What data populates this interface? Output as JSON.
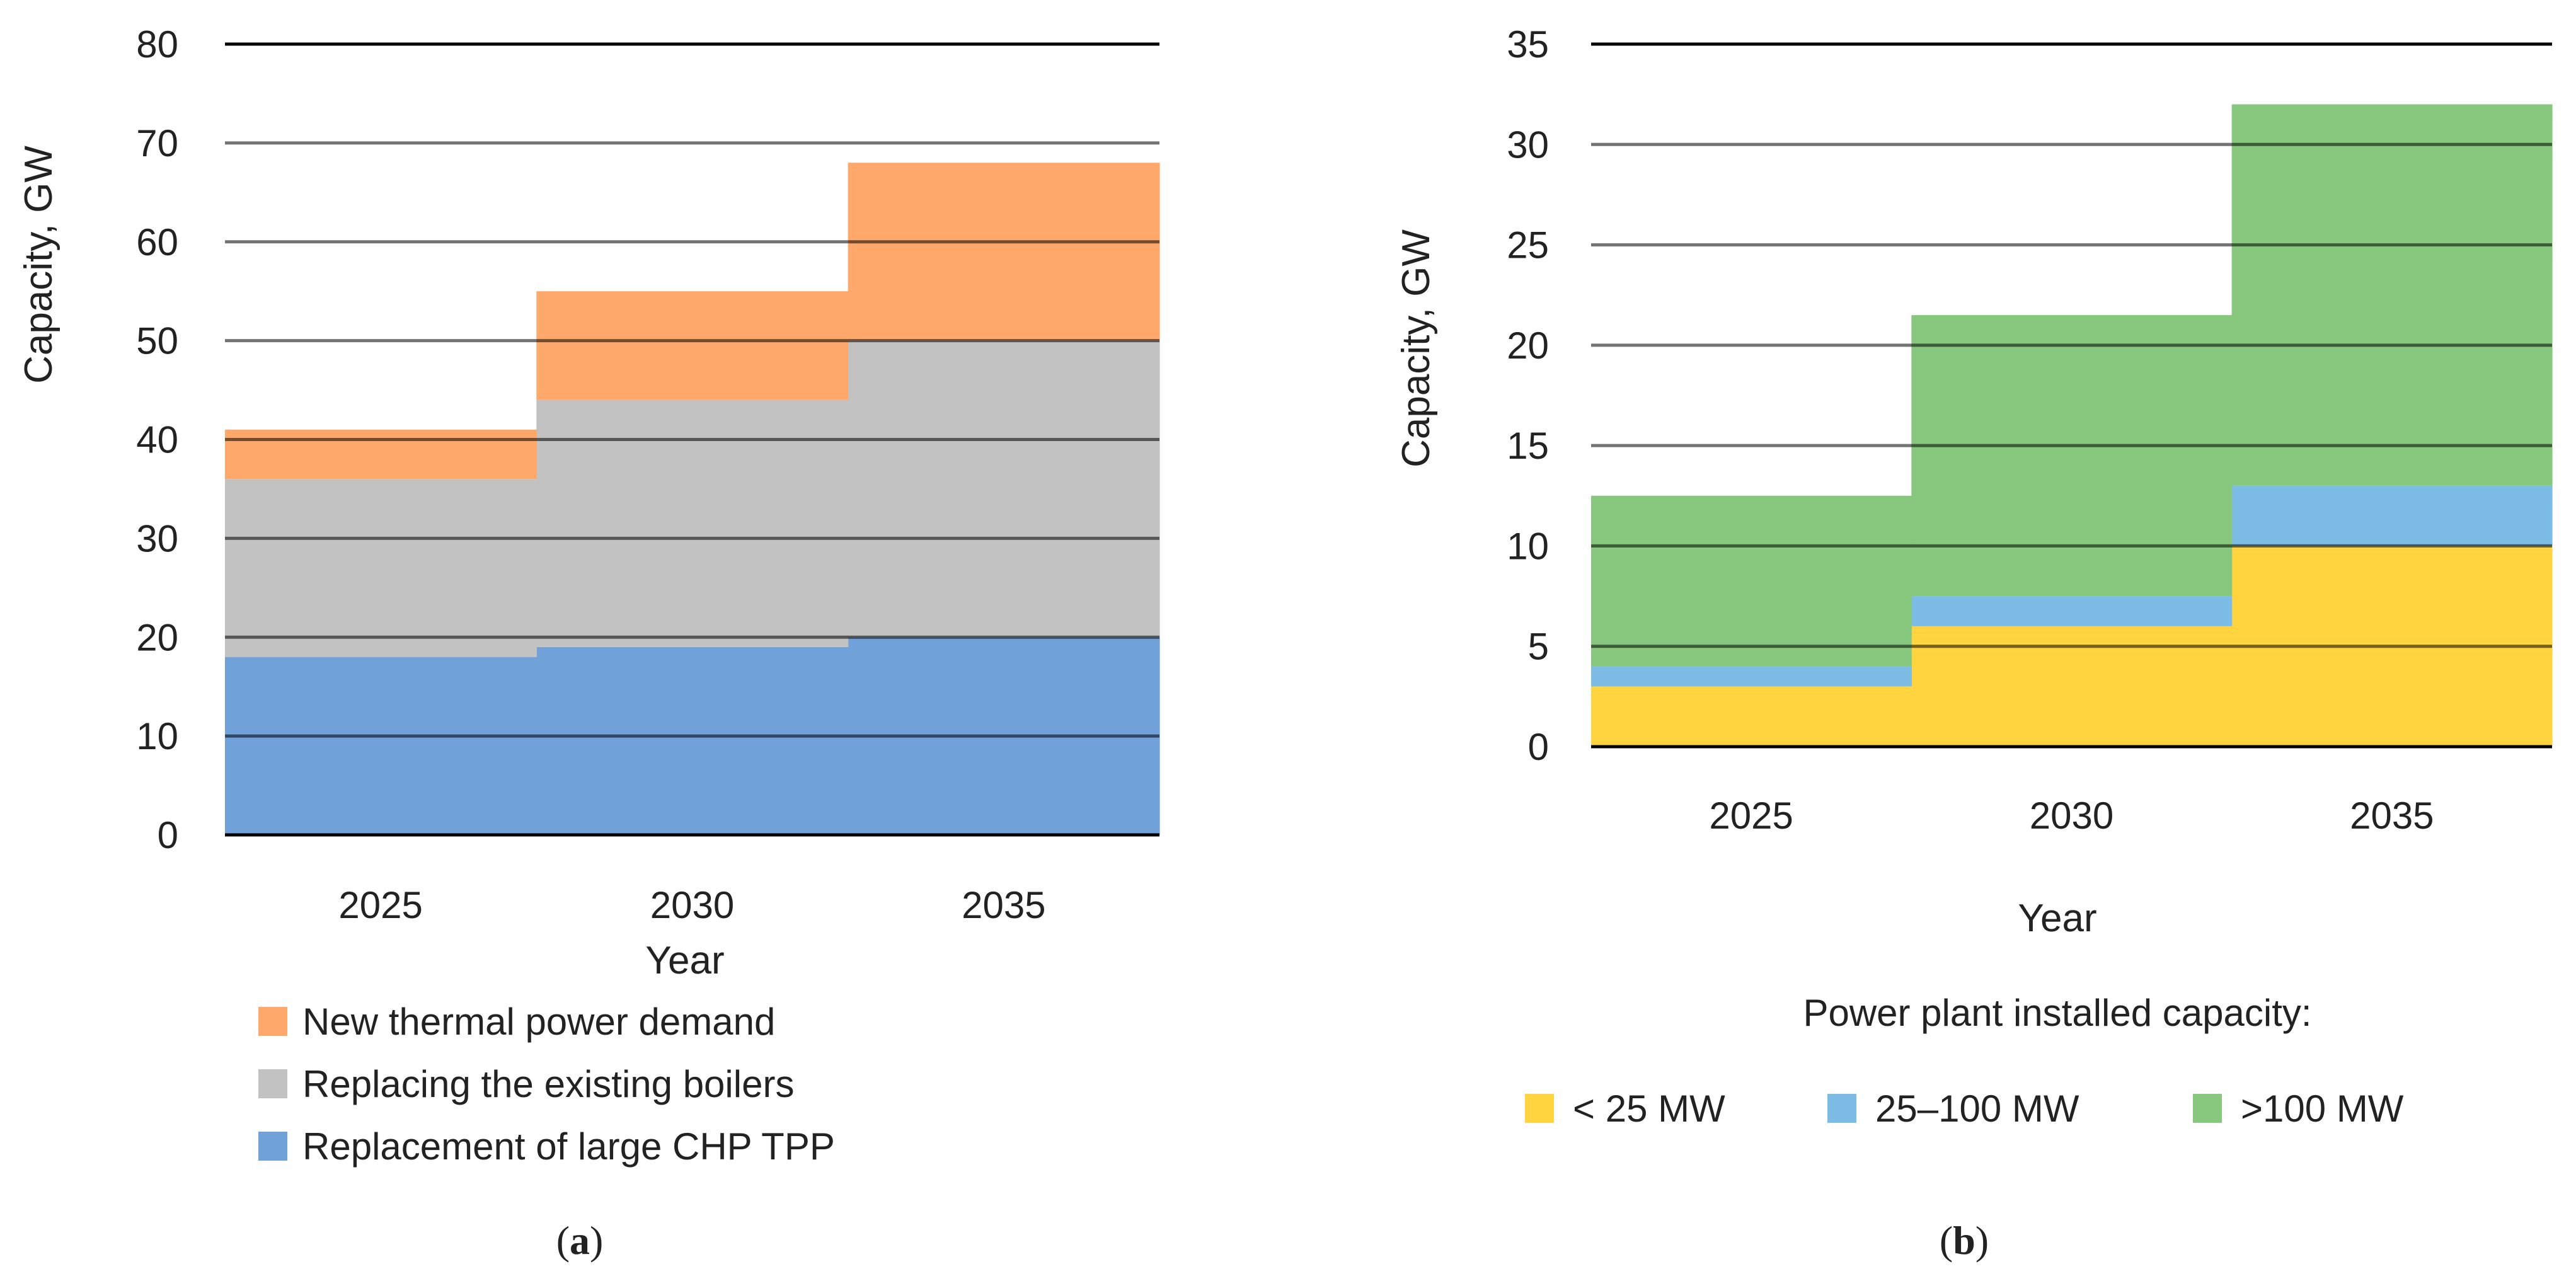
{
  "chart_data": [
    {
      "id": "a",
      "type": "area",
      "panel_label_open": "(",
      "panel_label_letter": "a",
      "panel_label_close": ")",
      "categories": [
        "2025",
        "2030",
        "2035"
      ],
      "series": [
        {
          "name": "Replacement of large CHP TPP",
          "values": [
            18,
            19,
            20
          ],
          "color": "#70a1d9"
        },
        {
          "name": "Replacing the existing boilers",
          "values": [
            18,
            25,
            30
          ],
          "color": "#c2c2c2"
        },
        {
          "name": "New thermal power demand",
          "values": [
            5,
            11,
            18
          ],
          "color": "#ffa86b"
        }
      ],
      "stacked": true,
      "step": true,
      "xlabel": "Year",
      "ylabel": "Capacity, GW",
      "ylim": [
        0,
        80
      ],
      "yticks": [
        0,
        10,
        20,
        30,
        40,
        50,
        60,
        70,
        80
      ],
      "grid": true,
      "legend_title": "",
      "legend_position": "bottom",
      "legend_order": [
        2,
        1,
        0
      ]
    },
    {
      "id": "b",
      "type": "area",
      "panel_label_open": "(",
      "panel_label_letter": "b",
      "panel_label_close": ")",
      "categories": [
        "2025",
        "2030",
        "2035"
      ],
      "series": [
        {
          "name": "< 25 MW",
          "values": [
            3,
            6,
            10
          ],
          "color": "#ffd43f"
        },
        {
          "name": "25–100 MW",
          "values": [
            1,
            1.5,
            3
          ],
          "color": "#7dbde5"
        },
        {
          "name": ">100 MW",
          "values": [
            8.5,
            14,
            19
          ],
          "color": "#88c77e"
        }
      ],
      "stacked": true,
      "step": true,
      "xlabel": "Year",
      "ylabel": "Capacity, GW",
      "ylim": [
        0,
        35
      ],
      "yticks": [
        0,
        5,
        10,
        15,
        20,
        25,
        30,
        35
      ],
      "grid": true,
      "legend_title": "Power plant installed capacity:",
      "legend_position": "bottom",
      "legend_order": [
        0,
        1,
        2
      ]
    }
  ]
}
